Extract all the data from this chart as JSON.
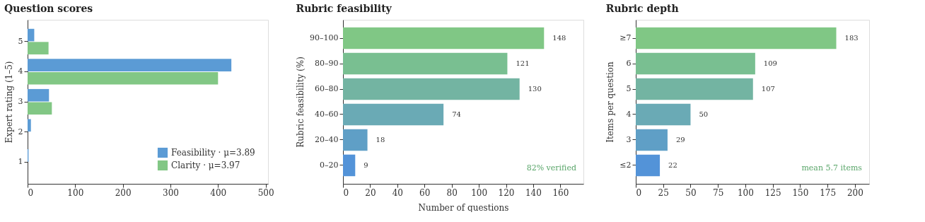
{
  "chart_data": [
    {
      "type": "bar",
      "orientation": "horizontal",
      "title": "Question scores",
      "ylabel": "Expert rating (1–5)",
      "categories": [
        "5",
        "4",
        "3",
        "2",
        "1"
      ],
      "xlim": [
        0,
        505
      ],
      "xticks": [
        0,
        100,
        200,
        300,
        400,
        500
      ],
      "legend": "bottom right",
      "grid": false,
      "series": [
        {
          "name": "Feasibility · μ=3.89",
          "color": "#5b9bd5",
          "values": [
            14,
            428,
            45,
            7,
            2
          ]
        },
        {
          "name": "Clarity · μ=3.97",
          "color": "#82c785",
          "values": [
            44,
            400,
            51,
            null,
            null
          ]
        }
      ]
    },
    {
      "type": "bar",
      "orientation": "horizontal",
      "title": "Rubric feasibility",
      "xlabel": "Number of questions",
      "ylabel": "Rubric feasibility (%)",
      "categories": [
        "90–100",
        "80–90",
        "60–80",
        "40–60",
        "20–40",
        "0–20"
      ],
      "values": [
        148,
        121,
        130,
        74,
        18,
        9
      ],
      "colors": [
        "#80c785",
        "#79bf91",
        "#73b4a2",
        "#6aaab5",
        "#5f9fc6",
        "#5393d8"
      ],
      "xlim": [
        0,
        177
      ],
      "xticks": [
        0,
        20,
        40,
        60,
        80,
        100,
        120,
        140,
        160
      ],
      "data_labels": true,
      "grid": false,
      "annotations": [
        "82% verified"
      ]
    },
    {
      "type": "bar",
      "orientation": "horizontal",
      "title": "Rubric depth",
      "ylabel": "Items per question",
      "categories": [
        "≥7",
        "6",
        "5",
        "4",
        "3",
        "≤2"
      ],
      "values": [
        183,
        109,
        107,
        50,
        29,
        22
      ],
      "colors": [
        "#80c785",
        "#79bf91",
        "#73b4a2",
        "#6aaab5",
        "#5f9fc6",
        "#5393d8"
      ],
      "xlim": [
        0,
        213
      ],
      "xticks": [
        0,
        25,
        50,
        75,
        100,
        125,
        150,
        175,
        200
      ],
      "data_labels": true,
      "grid": false,
      "annotations": [
        "mean 5.7 items"
      ]
    }
  ]
}
